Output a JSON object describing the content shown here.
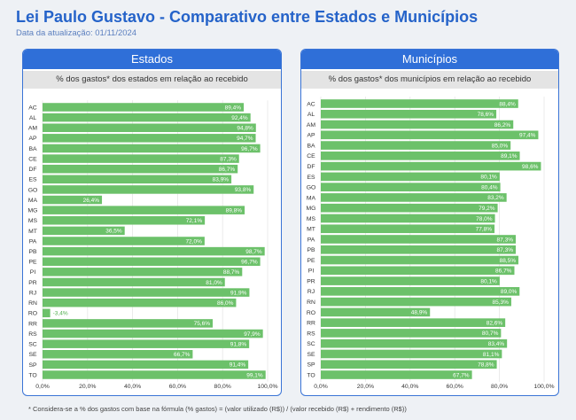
{
  "title": "Lei Paulo Gustavo - Comparativo entre Estados e Municípios",
  "subtitle": "Data da atualização: 01/11/2024",
  "footnote": "* Considera-se a % dos gastos com base na fórmula (% gastos) = (valor utilizado (R$)) / (valor recebido (R$) + rendimento (R$))",
  "colors": {
    "title": "#2563c9",
    "header": "#2f6fd8",
    "bar": "#6cc16a",
    "bar_label_outside": "#4fae4d",
    "background": "#eef1f5"
  },
  "chart_data": [
    {
      "type": "bar",
      "orientation": "horizontal",
      "title": "Estados",
      "subtitle": "% dos gastos* dos estados em relação ao recebido",
      "categories": [
        "AC",
        "AL",
        "AM",
        "AP",
        "BA",
        "CE",
        "DF",
        "ES",
        "GO",
        "MA",
        "MG",
        "MS",
        "MT",
        "PA",
        "PB",
        "PE",
        "PI",
        "PR",
        "RJ",
        "RN",
        "RO",
        "RR",
        "RS",
        "SC",
        "SE",
        "SP",
        "TO"
      ],
      "values": [
        89.4,
        92.4,
        94.8,
        94.7,
        96.7,
        87.3,
        86.7,
        83.9,
        93.8,
        26.4,
        89.8,
        72.1,
        36.5,
        72.0,
        98.7,
        96.7,
        88.7,
        81.0,
        91.9,
        86.0,
        -3.4,
        75.6,
        97.9,
        91.8,
        66.7,
        91.4,
        99.1
      ],
      "xlim": [
        0,
        100
      ],
      "x_ticks": [
        0,
        20,
        40,
        60,
        80,
        100
      ],
      "x_tick_labels": [
        "0,0%",
        "20,0%",
        "40,0%",
        "60,0%",
        "80,0%",
        "100,0%"
      ],
      "xlabel": "",
      "ylabel": ""
    },
    {
      "type": "bar",
      "orientation": "horizontal",
      "title": "Municípios",
      "subtitle": "% dos gastos* dos municípios em relação ao recebido",
      "categories": [
        "AC",
        "AL",
        "AM",
        "AP",
        "BA",
        "CE",
        "DF",
        "ES",
        "GO",
        "MA",
        "MG",
        "MS",
        "MT",
        "PA",
        "PB",
        "PE",
        "PI",
        "PR",
        "RJ",
        "RN",
        "RO",
        "RR",
        "RS",
        "SC",
        "SE",
        "SP",
        "TO"
      ],
      "values": [
        88.4,
        78.6,
        86.2,
        97.4,
        85.0,
        89.1,
        98.6,
        80.1,
        80.4,
        83.2,
        79.2,
        78.0,
        77.8,
        87.3,
        87.3,
        88.5,
        86.7,
        80.1,
        89.0,
        85.3,
        48.9,
        82.6,
        80.7,
        83.4,
        81.1,
        78.8,
        67.7
      ],
      "xlim": [
        0,
        100
      ],
      "x_ticks": [
        0,
        20,
        40,
        60,
        80,
        100
      ],
      "x_tick_labels": [
        "0,0%",
        "20,0%",
        "40,0%",
        "60,0%",
        "80,0%",
        "100,0%"
      ],
      "xlabel": "",
      "ylabel": ""
    }
  ]
}
